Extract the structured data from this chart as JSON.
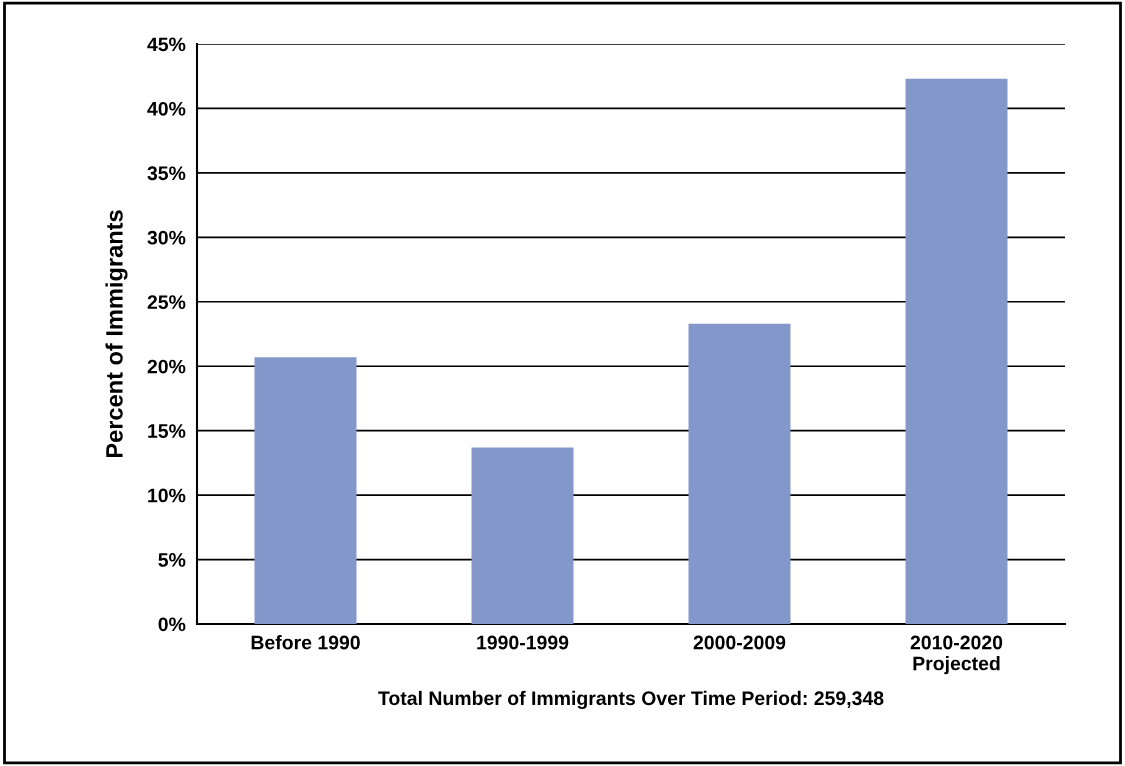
{
  "chart_data": {
    "type": "bar",
    "categories": [
      "Before 1990",
      "1990-1999",
      "2000-2009",
      "2010-2020\nProjected"
    ],
    "values": [
      20.7,
      13.7,
      23.3,
      42.3
    ],
    "color": "#8497cb",
    "xlabel": "Total Number of Immigrants Over Time Period: 259,348",
    "ylabel": "Percent of Immigrants",
    "ylim": [
      0,
      45
    ],
    "yticks": [
      {
        "value": 0,
        "label": "0%"
      },
      {
        "value": 5,
        "label": "5%"
      },
      {
        "value": 10,
        "label": "10%"
      },
      {
        "value": 15,
        "label": "15%"
      },
      {
        "value": 20,
        "label": "20%"
      },
      {
        "value": 25,
        "label": "25%"
      },
      {
        "value": 30,
        "label": "30%"
      },
      {
        "value": 35,
        "label": "35%"
      },
      {
        "value": 40,
        "label": "40%"
      },
      {
        "value": 45,
        "label": "45%"
      }
    ],
    "grid": "y",
    "legend": false
  }
}
